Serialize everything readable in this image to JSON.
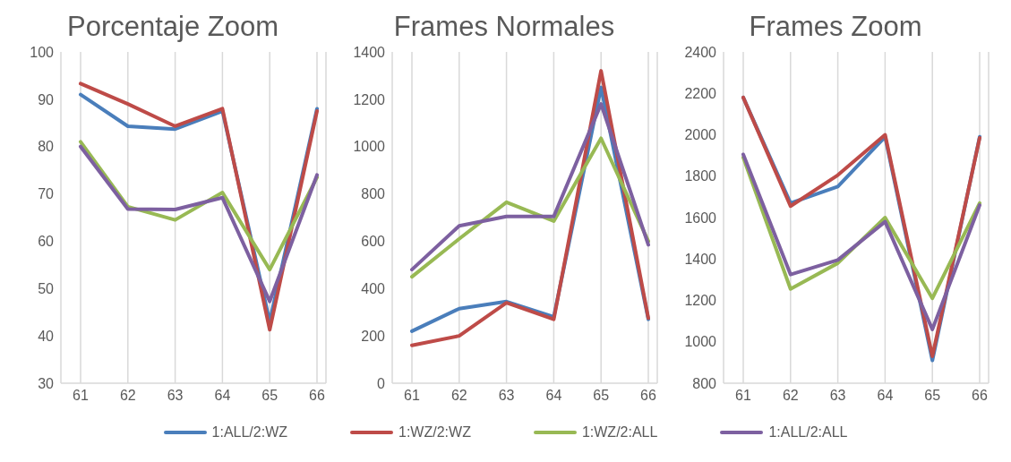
{
  "chart_data": [
    {
      "type": "line",
      "title": "Porcentaje Zoom",
      "categories": [
        "61",
        "62",
        "63",
        "64",
        "65",
        "66"
      ],
      "ylim": [
        30,
        100
      ],
      "yticks": [
        30,
        40,
        50,
        60,
        70,
        80,
        90,
        100
      ],
      "grid": "x",
      "legend": "bottom",
      "series": [
        {
          "name": "1:ALL/2:WZ",
          "color": "#4a7ebb",
          "values": [
            91,
            84.3,
            83.7,
            87.5,
            43,
            88
          ]
        },
        {
          "name": "1:WZ/2:WZ",
          "color": "#be4b48",
          "values": [
            93.3,
            89,
            84.3,
            88,
            41.3,
            87.5
          ]
        },
        {
          "name": "1:WZ/2:ALL",
          "color": "#98b954",
          "values": [
            81,
            67.3,
            64.5,
            70.3,
            54,
            73.5
          ]
        },
        {
          "name": "1:ALL/2:ALL",
          "color": "#7d60a0",
          "values": [
            80,
            66.8,
            66.7,
            69.2,
            47.3,
            74
          ]
        }
      ]
    },
    {
      "type": "line",
      "title": "Frames Normales",
      "categories": [
        "61",
        "62",
        "63",
        "64",
        "65",
        "66"
      ],
      "ylim": [
        0,
        1400
      ],
      "yticks": [
        0,
        200,
        400,
        600,
        800,
        1000,
        1200,
        1400
      ],
      "grid": "x",
      "series": [
        {
          "color": "#4a7ebb",
          "values": [
            220,
            315,
            345,
            280,
            1250,
            270
          ]
        },
        {
          "color": "#be4b48",
          "values": [
            160,
            200,
            340,
            270,
            1320,
            275
          ]
        },
        {
          "color": "#98b954",
          "values": [
            450,
            610,
            765,
            685,
            1035,
            600
          ]
        },
        {
          "color": "#7d60a0",
          "values": [
            480,
            665,
            705,
            705,
            1180,
            585
          ]
        }
      ]
    },
    {
      "type": "line",
      "title": "Frames Zoom",
      "categories": [
        "61",
        "62",
        "63",
        "64",
        "65",
        "66"
      ],
      "ylim": [
        800,
        2400
      ],
      "yticks": [
        800,
        1000,
        1200,
        1400,
        1600,
        1800,
        2000,
        2200,
        2400
      ],
      "grid": "x",
      "series": [
        {
          "color": "#4a7ebb",
          "values": [
            2180,
            1670,
            1750,
            1990,
            910,
            1990
          ]
        },
        {
          "color": "#be4b48",
          "values": [
            2180,
            1655,
            1805,
            2000,
            930,
            1985
          ]
        },
        {
          "color": "#98b954",
          "values": [
            1890,
            1255,
            1380,
            1600,
            1210,
            1670
          ]
        },
        {
          "color": "#7d60a0",
          "values": [
            1905,
            1325,
            1395,
            1580,
            1060,
            1660
          ]
        }
      ]
    }
  ]
}
